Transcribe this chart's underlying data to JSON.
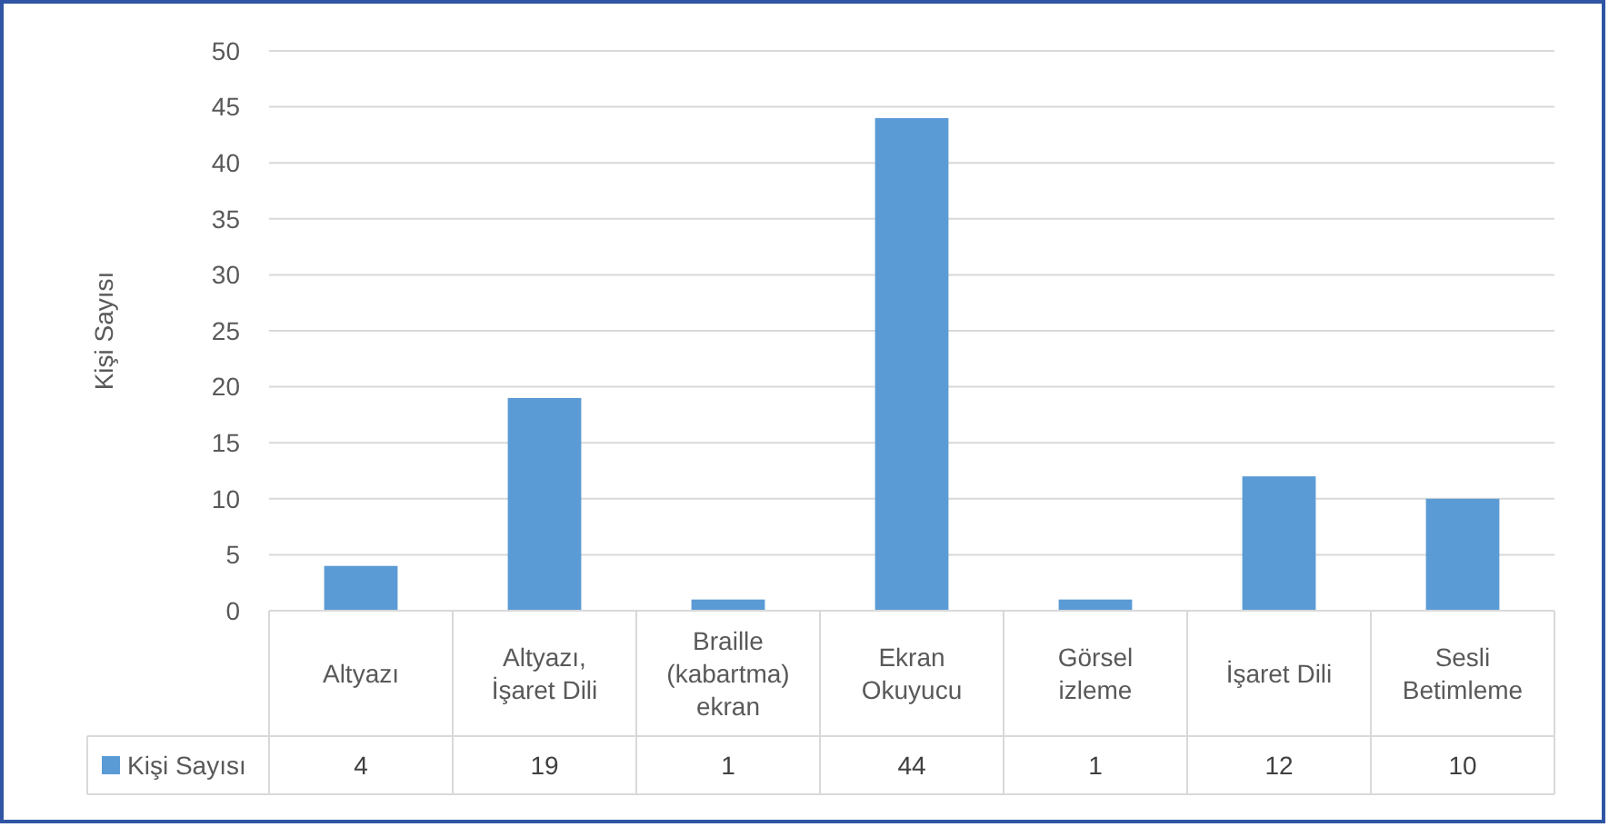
{
  "chart_data": {
    "type": "bar",
    "ylabel": "Kişi Sayısı",
    "categories": [
      "Altyazı",
      "Altyazı, İşaret Dili",
      "Braille (kabartma) ekran",
      "Ekran Okuyucu",
      "Görsel izleme",
      "İşaret Dili",
      "Sesli Betimleme"
    ],
    "series": [
      {
        "name": "Kişi Sayısı",
        "color": "#5b9bd5",
        "values": [
          4,
          19,
          1,
          44,
          1,
          12,
          10
        ]
      }
    ],
    "ylim": [
      0,
      50
    ],
    "yticks": [
      0,
      5,
      10,
      15,
      20,
      25,
      30,
      35,
      40,
      45,
      50
    ],
    "grid": "y",
    "legend": "bottom",
    "data_labels": true
  }
}
